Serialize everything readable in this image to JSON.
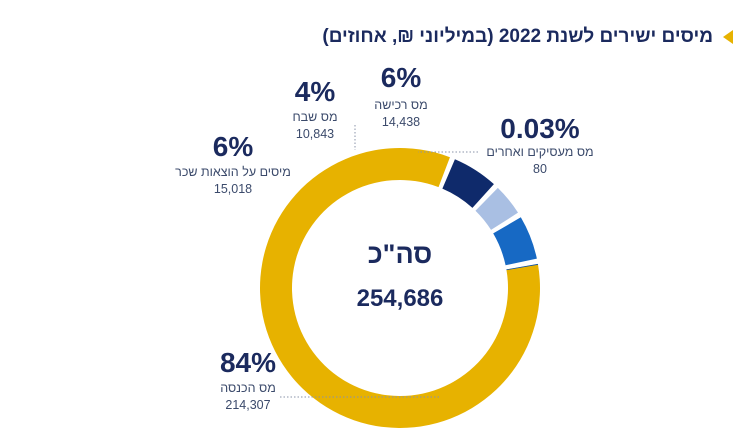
{
  "chart_data": {
    "type": "pie",
    "variant": "donut",
    "title": "מיסים ישירים לשנת 2022 (במיליוני ₪, אחוזים)",
    "center_label": "סה\"כ",
    "center_value": "254,686",
    "total": 254686,
    "slices": [
      {
        "name": "מס הכנסה",
        "value": 214307,
        "value_label": "214,307",
        "percent_label": "84%",
        "color": "#e7b200"
      },
      {
        "name": "מיסים על הוצאות שכר",
        "value": 15018,
        "value_label": "15,018",
        "percent_label": "6%",
        "color": "#0f2a6b"
      },
      {
        "name": "מס שבח",
        "value": 10843,
        "value_label": "10,843",
        "percent_label": "4%",
        "color": "#a9bfe3"
      },
      {
        "name": "מס רכישה",
        "value": 14438,
        "value_label": "14,438",
        "percent_label": "6%",
        "color": "#1769c4"
      },
      {
        "name": "מס מעסיקים ואחרים",
        "value": 80,
        "value_label": "80",
        "percent_label": "0.03%",
        "color": "#0a4fa8"
      }
    ]
  }
}
